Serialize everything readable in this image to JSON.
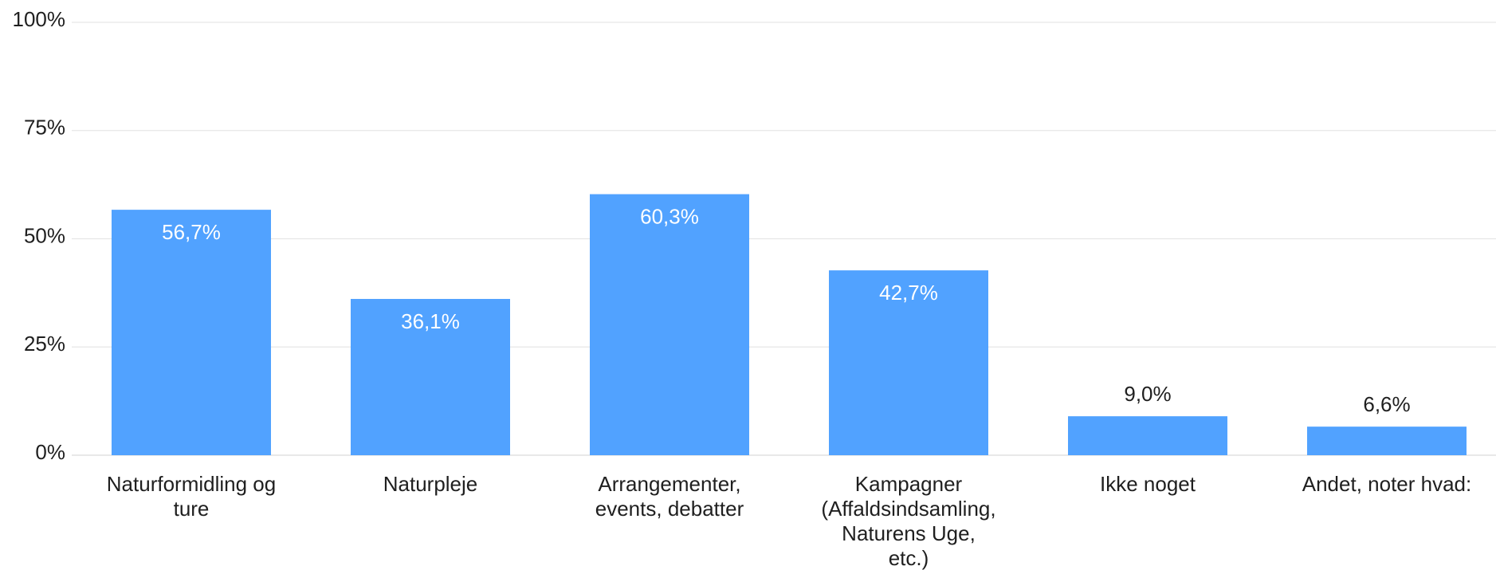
{
  "chart_data": {
    "type": "bar",
    "categories": [
      "Naturformidling og ture",
      "Naturpleje",
      "Arrangementer, events, debatter",
      "Kampagner (Affaldsindsamling, Naturens Uge, etc.)",
      "Ikke noget",
      "Andet, noter hvad:"
    ],
    "category_lines": [
      [
        "Naturformidling og",
        "ture"
      ],
      [
        "Naturpleje"
      ],
      [
        "Arrangementer,",
        "events, debatter"
      ],
      [
        "Kampagner",
        "(Affaldsindsamling,",
        "Naturens Uge,",
        "etc.)"
      ],
      [
        "Ikke noget"
      ],
      [
        "Andet, noter hvad:"
      ]
    ],
    "values": [
      56.7,
      36.1,
      60.3,
      42.7,
      9.0,
      6.6
    ],
    "value_labels": [
      "56,7%",
      "36,1%",
      "60,3%",
      "42,7%",
      "9,0%",
      "6,6%"
    ],
    "yticks": [
      0,
      25,
      50,
      75,
      100
    ],
    "ytick_labels": [
      "0%",
      "25%",
      "50%",
      "75%",
      "100%"
    ],
    "ylim": [
      0,
      100
    ],
    "grid": true,
    "legend": "none",
    "colors": {
      "bar": "#51a2ff",
      "label_inside": "#ffffff",
      "label_outside": "#1f1f1f"
    }
  }
}
